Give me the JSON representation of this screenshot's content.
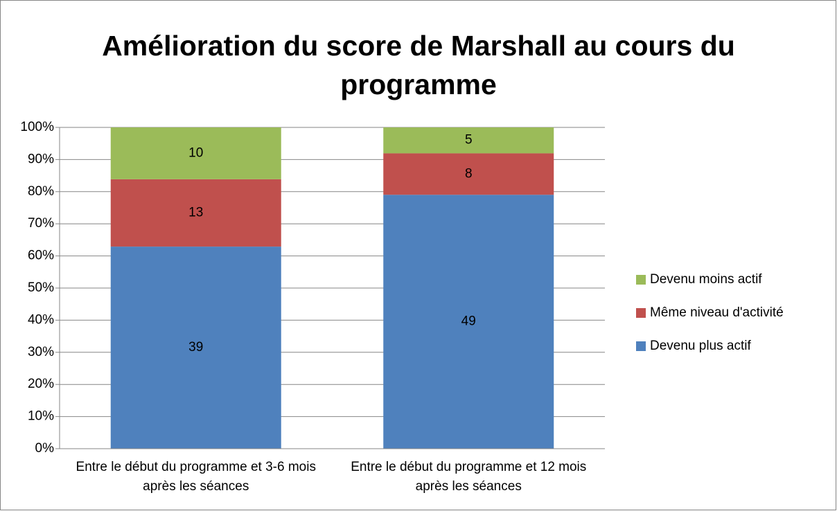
{
  "chart_data": {
    "type": "bar",
    "stacking": "percent",
    "title": "Amélioration du score de Marshall au cours du programme",
    "categories": [
      "Entre le début du programme et 3-6 mois après les séances",
      "Entre le début du programme et 12 mois après les séances"
    ],
    "series": [
      {
        "name": "Devenu plus actif",
        "color": "#4f81bd",
        "values": [
          39,
          49
        ]
      },
      {
        "name": "Même niveau d'activité",
        "color": "#c0504d",
        "values": [
          13,
          8
        ]
      },
      {
        "name": "Devenu moins actif",
        "color": "#9bbb59",
        "values": [
          10,
          5
        ]
      }
    ],
    "ylim": [
      0,
      100
    ],
    "yticks": [
      {
        "value": 0,
        "label": "0%"
      },
      {
        "value": 10,
        "label": "10%"
      },
      {
        "value": 20,
        "label": "20%"
      },
      {
        "value": 30,
        "label": "30%"
      },
      {
        "value": 40,
        "label": "40%"
      },
      {
        "value": 50,
        "label": "50%"
      },
      {
        "value": 60,
        "label": "60%"
      },
      {
        "value": 70,
        "label": "70%"
      },
      {
        "value": 80,
        "label": "80%"
      },
      {
        "value": 90,
        "label": "90%"
      },
      {
        "value": 100,
        "label": "100%"
      }
    ],
    "grid": true,
    "legend": "right"
  }
}
